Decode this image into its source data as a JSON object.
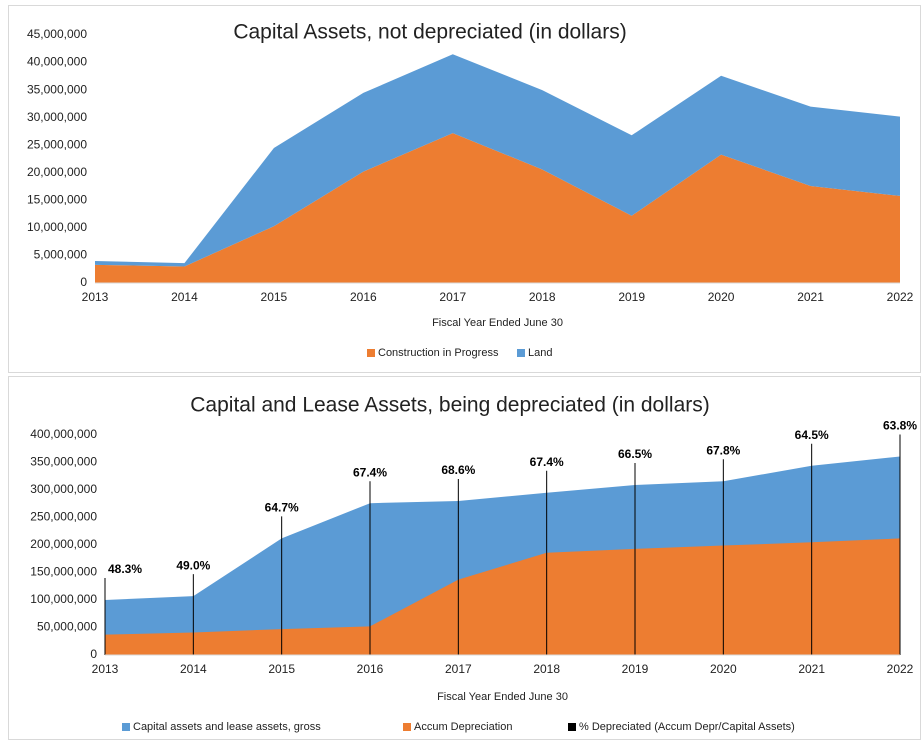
{
  "chart_data": [
    {
      "type": "area",
      "stacked": true,
      "title": "Capital Assets, not depreciated (in dollars)",
      "x_label": "Fiscal Year Ended June 30",
      "categories": [
        "2013",
        "2014",
        "2015",
        "2016",
        "2017",
        "2018",
        "2019",
        "2020",
        "2021",
        "2022"
      ],
      "series": [
        {
          "name": "Construction in Progress",
          "color": "#ed7d31",
          "values": [
            3300000,
            3000000,
            10300000,
            20200000,
            27200000,
            20600000,
            12200000,
            23300000,
            17600000,
            15800000
          ]
        },
        {
          "name": "Land",
          "color": "#5b9bd5",
          "values": [
            700000,
            600000,
            14200000,
            14300000,
            14300000,
            14400000,
            14600000,
            14300000,
            14400000,
            14400000
          ]
        }
      ],
      "ylim": [
        0,
        45000000
      ],
      "yticks": [
        0,
        {
          "value": 5000000,
          "label": "5,000,000"
        },
        {
          "value": 10000000,
          "label": "10,000,000"
        },
        {
          "value": 15000000,
          "label": "15,000,000"
        },
        {
          "value": 20000000,
          "label": "20,000,000"
        },
        {
          "value": 25000000,
          "label": "25,000,000"
        },
        {
          "value": 30000000,
          "label": "30,000,000"
        },
        {
          "value": 35000000,
          "label": "35,000,000"
        },
        {
          "value": 40000000,
          "label": "40,000,000"
        },
        {
          "value": 45000000,
          "label": "45,000,000"
        }
      ],
      "legend": "bottom"
    },
    {
      "type": "area",
      "stacked": false,
      "title": "Capital and Lease Assets, being depreciated (in dollars)",
      "x_label": "Fiscal Year Ended June 30",
      "categories": [
        "2013",
        "2014",
        "2015",
        "2016",
        "2017",
        "2018",
        "2019",
        "2020",
        "2021",
        "2022"
      ],
      "series": [
        {
          "name": "Capital assets and lease assets, gross",
          "color": "#5b9bd5",
          "values": [
            100000000,
            107000000,
            212000000,
            276000000,
            280000000,
            295000000,
            309000000,
            316000000,
            344000000,
            361000000
          ]
        },
        {
          "name": "Accum Depreciation",
          "color": "#ed7d31",
          "values": [
            37000000,
            41000000,
            47000000,
            52000000,
            137000000,
            186000000,
            193000000,
            199000000,
            205000000,
            212000000
          ]
        },
        {
          "name": "% Depreciated (Accum Depr/Capital Assets)",
          "color": "#000000",
          "values": [
            48.3,
            49.0,
            64.7,
            67.4,
            68.6,
            67.4,
            66.5,
            67.8,
            64.5,
            63.8
          ],
          "value_labels": [
            "48.3%",
            "49.0%",
            "64.7%",
            "67.4%",
            "68.6%",
            "67.4%",
            "66.5%",
            "67.8%",
            "64.5%",
            "63.8%"
          ]
        }
      ],
      "ylim": [
        0,
        400000000
      ],
      "yticks": [
        0,
        {
          "value": 50000000,
          "label": "50,000,000"
        },
        {
          "value": 100000000,
          "label": "100,000,000"
        },
        {
          "value": 150000000,
          "label": "150,000,000"
        },
        {
          "value": 200000000,
          "label": "200,000,000"
        },
        {
          "value": 250000000,
          "label": "250,000,000"
        },
        {
          "value": 300000000,
          "label": "300,000,000"
        },
        {
          "value": 350000000,
          "label": "350,000,000"
        },
        {
          "value": 400000000,
          "label": "400,000,000"
        }
      ],
      "legend": "bottom"
    }
  ]
}
